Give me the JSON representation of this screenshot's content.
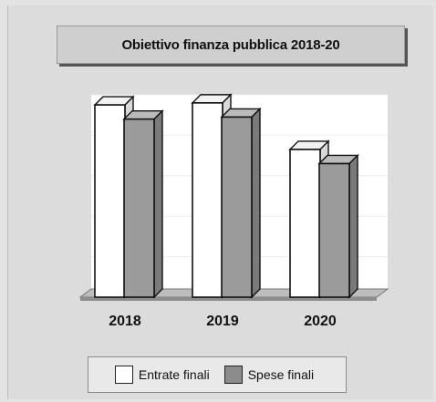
{
  "chart_data": {
    "type": "bar",
    "title": "Obiettivo finanza pubblica 2018-20",
    "categories": [
      "2018",
      "2019",
      "2020"
    ],
    "series": [
      {
        "name": "Entrate finali",
        "values": [
          95,
          96,
          73
        ],
        "color": "#ffffff"
      },
      {
        "name": "Spese finali",
        "values": [
          88,
          89,
          66
        ],
        "color": "#9a9a9a"
      }
    ],
    "ylim": [
      0,
      100
    ],
    "grid": true,
    "legend_position": "bottom"
  }
}
